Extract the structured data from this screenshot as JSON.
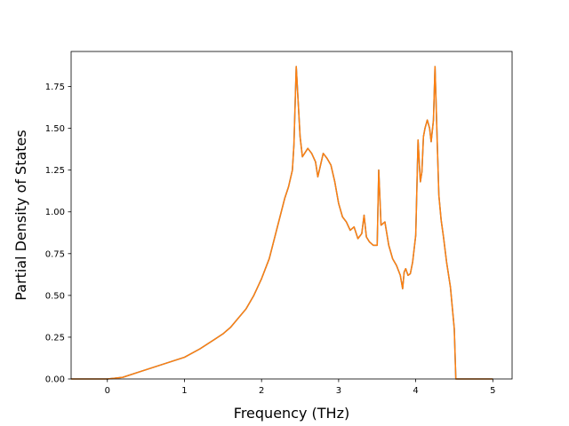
{
  "chart_data": {
    "type": "line",
    "title": "",
    "xlabel": "Frequency (THz)",
    "ylabel": "Partial Density of States",
    "xlim": [
      -0.47,
      5.25
    ],
    "ylim": [
      0.0,
      1.96
    ],
    "xticks": [
      0,
      1,
      2,
      3,
      4,
      5
    ],
    "xtick_labels": [
      "0",
      "1",
      "2",
      "3",
      "4",
      "5"
    ],
    "yticks": [
      0.0,
      0.25,
      0.5,
      0.75,
      1.0,
      1.25,
      1.5,
      1.75
    ],
    "ytick_labels": [
      "0.00",
      "0.25",
      "0.50",
      "0.75",
      "1.00",
      "1.25",
      "1.50",
      "1.75"
    ],
    "grid": false,
    "legend": "none",
    "series": [
      {
        "color": "#1f77b4",
        "x": [
          -0.47,
          0.0,
          0.2,
          0.4,
          0.6,
          0.8,
          1.0,
          1.2,
          1.4,
          1.5,
          1.6,
          1.8,
          1.9,
          2.0,
          2.1,
          2.2,
          2.3,
          2.35,
          2.4,
          2.42,
          2.45,
          2.5,
          2.53,
          2.6,
          2.65,
          2.7,
          2.73,
          2.76,
          2.8,
          2.85,
          2.9,
          2.95,
          3.0,
          3.05,
          3.1,
          3.15,
          3.2,
          3.25,
          3.3,
          3.33,
          3.36,
          3.4,
          3.45,
          3.5,
          3.52,
          3.55,
          3.6,
          3.65,
          3.7,
          3.75,
          3.8,
          3.83,
          3.85,
          3.87,
          3.9,
          3.93,
          3.96,
          4.0,
          4.03,
          4.06,
          4.08,
          4.1,
          4.12,
          4.15,
          4.18,
          4.2,
          4.23,
          4.25,
          4.28,
          4.3,
          4.33,
          4.36,
          4.4,
          4.45,
          4.5,
          4.52,
          4.53,
          4.55,
          4.6,
          4.8,
          5.0
        ],
        "y": [
          0.0,
          0.0,
          0.01,
          0.04,
          0.07,
          0.1,
          0.13,
          0.18,
          0.24,
          0.27,
          0.31,
          0.42,
          0.5,
          0.6,
          0.72,
          0.9,
          1.08,
          1.15,
          1.25,
          1.4,
          1.87,
          1.45,
          1.33,
          1.38,
          1.35,
          1.3,
          1.21,
          1.27,
          1.35,
          1.32,
          1.28,
          1.18,
          1.05,
          0.97,
          0.94,
          0.89,
          0.91,
          0.84,
          0.87,
          0.98,
          0.85,
          0.82,
          0.8,
          0.8,
          1.25,
          0.92,
          0.94,
          0.8,
          0.72,
          0.68,
          0.62,
          0.54,
          0.64,
          0.66,
          0.62,
          0.63,
          0.7,
          0.86,
          1.43,
          1.18,
          1.24,
          1.45,
          1.5,
          1.55,
          1.5,
          1.42,
          1.55,
          1.87,
          1.4,
          1.1,
          0.95,
          0.85,
          0.7,
          0.55,
          0.3,
          0.0,
          0.0,
          0.0,
          0.0,
          0.0,
          0.0
        ]
      },
      {
        "color": "#ff7f0e",
        "x": [
          -0.47,
          0.0,
          0.2,
          0.4,
          0.6,
          0.8,
          1.0,
          1.2,
          1.4,
          1.5,
          1.6,
          1.8,
          1.9,
          2.0,
          2.1,
          2.2,
          2.3,
          2.35,
          2.4,
          2.42,
          2.45,
          2.5,
          2.53,
          2.6,
          2.65,
          2.7,
          2.73,
          2.76,
          2.8,
          2.85,
          2.9,
          2.95,
          3.0,
          3.05,
          3.1,
          3.15,
          3.2,
          3.25,
          3.3,
          3.33,
          3.36,
          3.4,
          3.45,
          3.5,
          3.52,
          3.55,
          3.6,
          3.65,
          3.7,
          3.75,
          3.8,
          3.83,
          3.85,
          3.87,
          3.9,
          3.93,
          3.96,
          4.0,
          4.03,
          4.06,
          4.08,
          4.1,
          4.12,
          4.15,
          4.18,
          4.2,
          4.23,
          4.25,
          4.28,
          4.3,
          4.33,
          4.36,
          4.4,
          4.45,
          4.5,
          4.52,
          4.53,
          4.55,
          4.6,
          4.8,
          5.0
        ],
        "y": [
          0.0,
          0.0,
          0.01,
          0.04,
          0.07,
          0.1,
          0.13,
          0.18,
          0.24,
          0.27,
          0.31,
          0.42,
          0.5,
          0.6,
          0.72,
          0.9,
          1.08,
          1.15,
          1.25,
          1.4,
          1.87,
          1.45,
          1.33,
          1.38,
          1.35,
          1.3,
          1.21,
          1.27,
          1.35,
          1.32,
          1.28,
          1.18,
          1.05,
          0.97,
          0.94,
          0.89,
          0.91,
          0.84,
          0.87,
          0.98,
          0.85,
          0.82,
          0.8,
          0.8,
          1.25,
          0.92,
          0.94,
          0.8,
          0.72,
          0.68,
          0.62,
          0.54,
          0.64,
          0.66,
          0.62,
          0.63,
          0.7,
          0.86,
          1.43,
          1.18,
          1.24,
          1.45,
          1.5,
          1.55,
          1.5,
          1.42,
          1.55,
          1.87,
          1.4,
          1.1,
          0.95,
          0.85,
          0.7,
          0.55,
          0.3,
          0.0,
          0.0,
          0.0,
          0.0,
          0.0,
          0.0
        ]
      }
    ]
  }
}
